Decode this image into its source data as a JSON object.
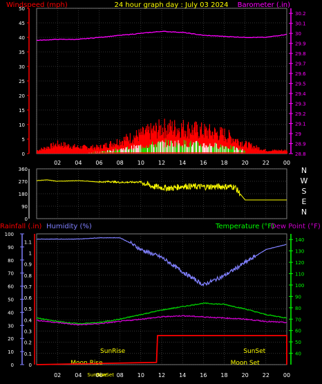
{
  "chart_data": [
    {
      "type": "line",
      "panel": "wind-barometer",
      "title": "24 hour graph day : July 03 2024",
      "ylabel_left": "Windspeed (mph)",
      "ylabel_right": "Barometer (.in)",
      "x_ticks": [
        "02",
        "04",
        "06",
        "08",
        "10",
        "12",
        "14",
        "16",
        "18",
        "20",
        "22",
        "00"
      ],
      "y_left_ticks": [
        0,
        5,
        10,
        15,
        20,
        25,
        30,
        35,
        40,
        45,
        50
      ],
      "y_left_lim": [
        0,
        50
      ],
      "y_right_ticks": [
        "28.8",
        "28.9",
        "29",
        "29.1",
        "29.2",
        "29.3",
        "29.4",
        "29.5",
        "29.6",
        "29.7",
        "29.8",
        "29.9",
        "30",
        "30.1",
        "30.2"
      ],
      "y_right_lim": [
        28.8,
        30.25
      ],
      "grid": true,
      "colors": {
        "gust": "#ff0000",
        "avg": "#00ff00",
        "calm": "#ffffff",
        "baro": "#ff00ff",
        "wind_axis": "#ff0000",
        "baro_axis": "#ff00ff"
      },
      "series": [
        {
          "name": "Barometer",
          "hours": [
            0,
            2,
            4,
            6,
            8,
            10,
            12,
            14,
            16,
            18,
            20,
            22,
            24
          ],
          "values": [
            29.93,
            29.94,
            29.94,
            29.96,
            29.98,
            30.0,
            30.02,
            30.01,
            29.98,
            29.97,
            29.96,
            29.96,
            29.99
          ]
        },
        {
          "name": "Gust",
          "hours": [
            0,
            2,
            4,
            6,
            8,
            10,
            12,
            14,
            16,
            18,
            20,
            22,
            24
          ],
          "values": [
            1,
            3,
            2,
            2,
            4,
            6,
            8,
            8,
            7,
            6,
            3,
            1,
            1
          ]
        },
        {
          "name": "Average",
          "hours": [
            0,
            2,
            4,
            6,
            8,
            10,
            12,
            14,
            16,
            18,
            20,
            22,
            24
          ],
          "values": [
            0.5,
            1,
            0.5,
            0.5,
            1.5,
            2.5,
            3.5,
            3.5,
            3,
            2.5,
            1,
            0.3,
            0.3
          ]
        }
      ]
    },
    {
      "type": "line",
      "panel": "wind-direction",
      "y_ticks": [
        0,
        90,
        180,
        270,
        360
      ],
      "y_lim": [
        0,
        360
      ],
      "compass_labels": [
        "N",
        "W",
        "S",
        "E",
        "N"
      ],
      "grid": true,
      "colors": {
        "direction": "#ffff00",
        "axis": "#ffffff"
      },
      "series": [
        {
          "name": "Direction",
          "hours": [
            0,
            1,
            2,
            4,
            6,
            7,
            8,
            10,
            11,
            12,
            13,
            14,
            16,
            18,
            19,
            20,
            22,
            24
          ],
          "values": [
            275,
            280,
            270,
            275,
            265,
            268,
            262,
            265,
            235,
            225,
            220,
            235,
            230,
            232,
            230,
            135,
            135,
            135
          ]
        }
      ]
    },
    {
      "type": "line",
      "panel": "temperature-humidity-rain",
      "ylabel_rain": "Rainfall (.in)",
      "ylabel_hum": "Humidity (%)",
      "ylabel_temp": "Temperature (°F)",
      "ylabel_dew": "Dew Point (°F)",
      "rain_ticks": [
        "0",
        "0.1",
        "0.2",
        "0.3",
        "0.4",
        "0.5",
        "0.6",
        "0.7",
        "0.8",
        "0.9",
        "1",
        "1.1"
      ],
      "rain_lim": [
        0,
        1.17
      ],
      "hum_ticks": [
        0,
        10,
        20,
        30,
        40,
        50,
        60,
        70,
        80,
        90,
        100
      ],
      "hum_lim": [
        0,
        100
      ],
      "temp_ticks": [
        40,
        50,
        60,
        70,
        80,
        90,
        100,
        110,
        120,
        130,
        140
      ],
      "temp_lim": [
        30,
        145
      ],
      "annotations": [
        "SunRise",
        "SunSet",
        "Moon Rise",
        "Moon Set",
        "SunRise",
        "SunSet"
      ],
      "grid": true,
      "colors": {
        "humidity": "#8080ff",
        "temperature": "#00cc00",
        "dewpoint": "#cc00cc",
        "rain": "#ff0000",
        "rain_axis": "#ff0000",
        "temp_axis": "#00ff00"
      },
      "series": [
        {
          "name": "Humidity",
          "hours": [
            0,
            2,
            4,
            6,
            8,
            9,
            10,
            12,
            14,
            16,
            18,
            20,
            22,
            24
          ],
          "values": [
            96,
            96,
            96,
            97,
            97,
            93,
            88,
            82,
            71,
            61,
            68,
            78,
            88,
            92
          ]
        },
        {
          "name": "Temperature",
          "hours": [
            0,
            2,
            4,
            6,
            8,
            10,
            12,
            14,
            16,
            18,
            20,
            22,
            24
          ],
          "values": [
            71,
            68,
            66,
            67,
            70,
            74,
            78,
            81,
            84,
            83,
            79,
            74,
            71
          ]
        },
        {
          "name": "Dew Point",
          "hours": [
            0,
            2,
            4,
            6,
            8,
            10,
            12,
            14,
            16,
            18,
            20,
            22,
            24
          ],
          "values": [
            69,
            67,
            65,
            66,
            68,
            70,
            72,
            73,
            72,
            71,
            70,
            68,
            67
          ]
        },
        {
          "name": "Rainfall",
          "hours": [
            0,
            11.5,
            11.6,
            24,
            24
          ],
          "values": [
            0,
            0.02,
            0.26,
            0.26,
            0
          ]
        }
      ]
    }
  ]
}
